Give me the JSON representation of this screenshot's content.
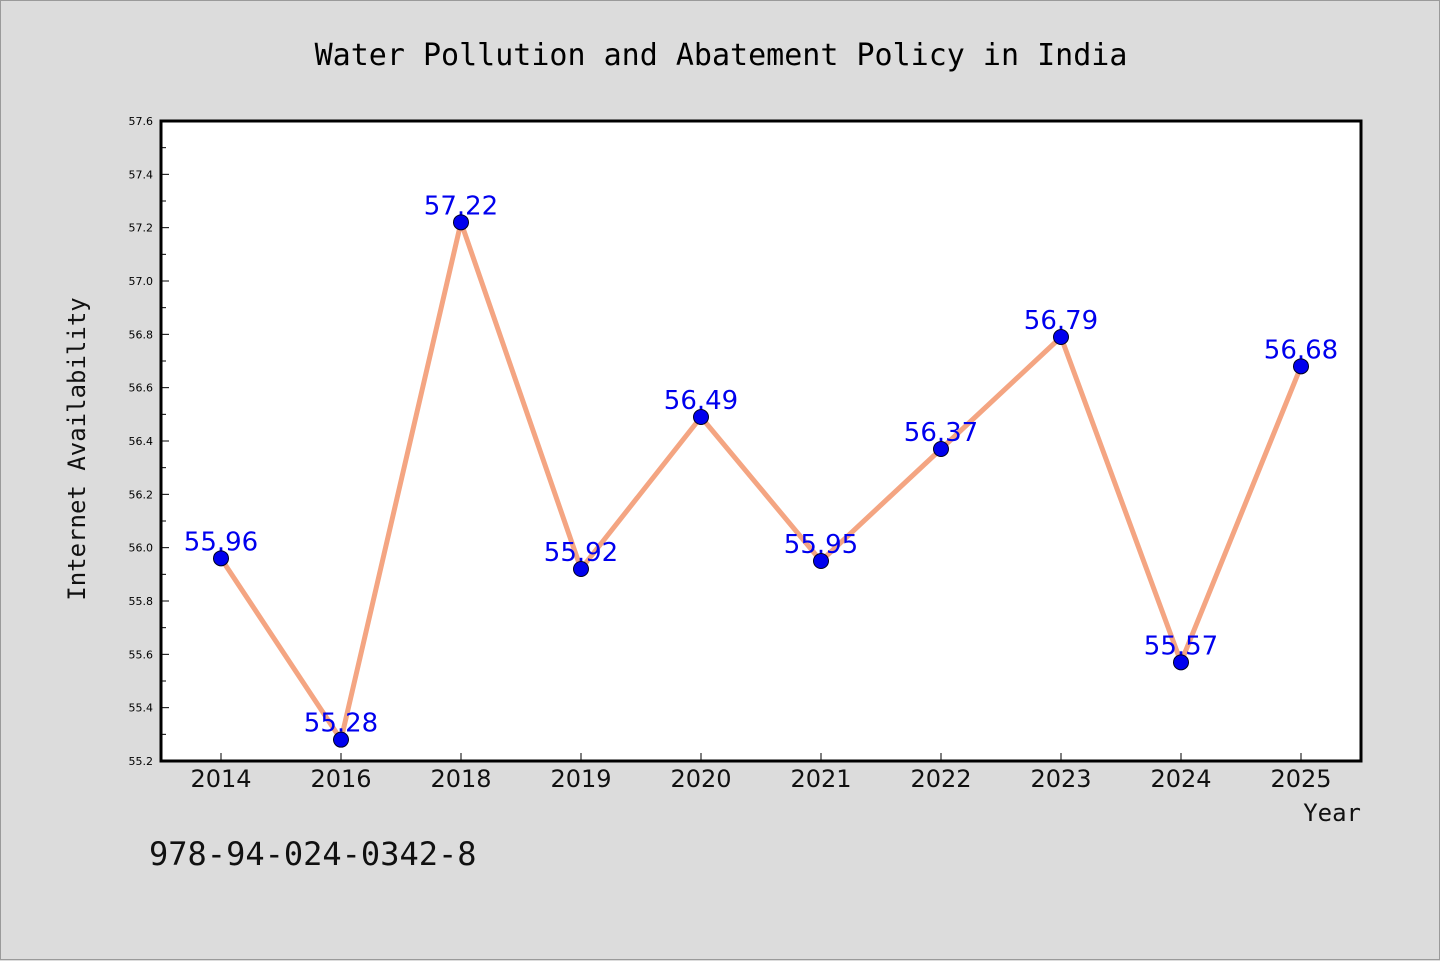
{
  "footer_text": "978-94-024-0342-8",
  "colors": {
    "background": "#dcdcdc",
    "plot_background": "#ffffff",
    "line": "#f4a582",
    "marker": "#0000ee",
    "data_label": "#0000ee"
  },
  "chart_data": {
    "type": "line",
    "title": "Water Pollution and Abatement Policy in India",
    "xlabel": "Year",
    "ylabel": "Internet Availability",
    "categories": [
      "2014",
      "2016",
      "2018",
      "2019",
      "2020",
      "2021",
      "2022",
      "2023",
      "2024",
      "2025"
    ],
    "series": [
      {
        "values": [
          55.96,
          55.28,
          57.22,
          55.92,
          56.49,
          55.95,
          56.37,
          56.79,
          55.57,
          56.68
        ]
      }
    ],
    "data_labels": [
      "55.96",
      "55.28",
      "57.22",
      "55.92",
      "56.49",
      "55.95",
      "56.37",
      "56.79",
      "55.57",
      "56.68"
    ],
    "ylim": [
      55.2,
      57.6
    ],
    "yticks": [
      "55.2",
      "55.4",
      "55.6",
      "55.8",
      "56.0",
      "56.2",
      "56.4",
      "56.6",
      "56.8",
      "57.0",
      "57.2",
      "57.4",
      "57.6"
    ],
    "grid": false,
    "legend": "none"
  }
}
